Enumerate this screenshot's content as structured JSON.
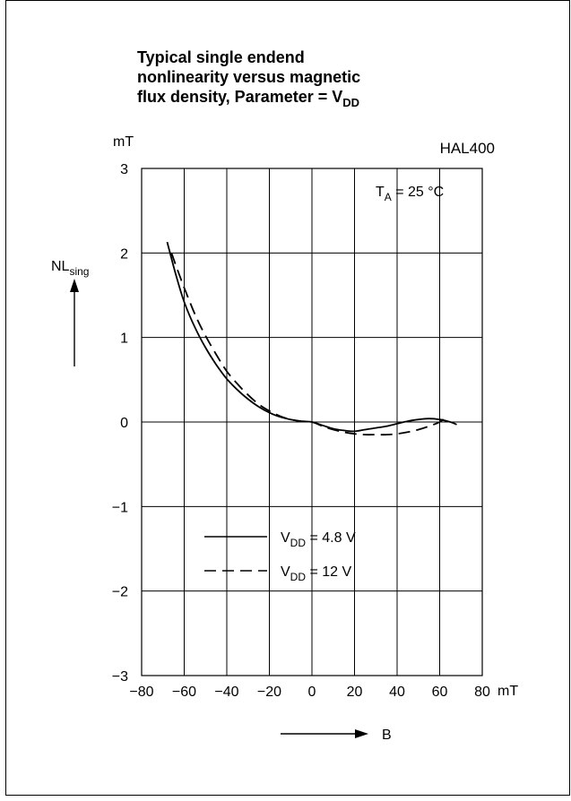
{
  "chart_data": {
    "type": "line",
    "title_lines": [
      "Typical single endend",
      "nonlinearity versus magnetic",
      "flux density, Parameter = V"
    ],
    "title_subscript": "DD",
    "device_label": "HAL400",
    "condition": {
      "main": "T",
      "sub": "A",
      "rest": " = 25 °C"
    },
    "ylabel": {
      "main": "NL",
      "sub": "sing"
    },
    "yunit": "mT",
    "xlabel": "B",
    "xunit": "mT",
    "xlim": [
      -80,
      80
    ],
    "ylim": [
      -3,
      3
    ],
    "xticks": [
      -80,
      -60,
      -40,
      -20,
      0,
      20,
      40,
      60,
      80
    ],
    "yticks": [
      -3,
      -2,
      -1,
      0,
      1,
      2,
      3
    ],
    "xtick_labels": [
      "−80",
      "−60",
      "−40",
      "−20",
      "0",
      "20",
      "40",
      "60",
      "80"
    ],
    "ytick_labels": [
      "−3",
      "−2",
      "−1",
      "0",
      "1",
      "2",
      "3"
    ],
    "grid": true,
    "legend_position": "bottom-center",
    "series": [
      {
        "name_main": "V",
        "name_sub": "DD",
        "name_rest": " = 4.8 V",
        "style": "solid",
        "x": [
          -68,
          -64,
          -60,
          -55,
          -50,
          -45,
          -40,
          -35,
          -30,
          -25,
          -20,
          -15,
          -10,
          -5,
          0,
          5,
          10,
          15,
          20,
          25,
          30,
          35,
          40,
          45,
          50,
          55,
          60,
          65,
          68
        ],
        "y": [
          2.13,
          1.75,
          1.42,
          1.12,
          0.88,
          0.68,
          0.51,
          0.38,
          0.27,
          0.18,
          0.11,
          0.06,
          0.03,
          0.01,
          0.0,
          -0.04,
          -0.08,
          -0.1,
          -0.11,
          -0.09,
          -0.07,
          -0.05,
          -0.02,
          0.01,
          0.03,
          0.04,
          0.03,
          0.0,
          -0.03
        ]
      },
      {
        "name_main": "V",
        "name_sub": "DD",
        "name_rest": " = 12 V",
        "style": "dashed",
        "x": [
          -66,
          -62,
          -58,
          -54,
          -50,
          -45,
          -40,
          -35,
          -30,
          -25,
          -20,
          -15,
          -10,
          -5,
          0,
          5,
          10,
          15,
          20,
          25,
          30,
          35,
          40,
          45,
          50,
          55,
          60,
          63
        ],
        "y": [
          2.0,
          1.72,
          1.46,
          1.22,
          1.02,
          0.8,
          0.6,
          0.45,
          0.32,
          0.21,
          0.13,
          0.07,
          0.03,
          0.01,
          0.0,
          -0.05,
          -0.09,
          -0.12,
          -0.14,
          -0.15,
          -0.15,
          -0.15,
          -0.14,
          -0.12,
          -0.09,
          -0.05,
          0.0,
          0.06
        ]
      }
    ]
  }
}
